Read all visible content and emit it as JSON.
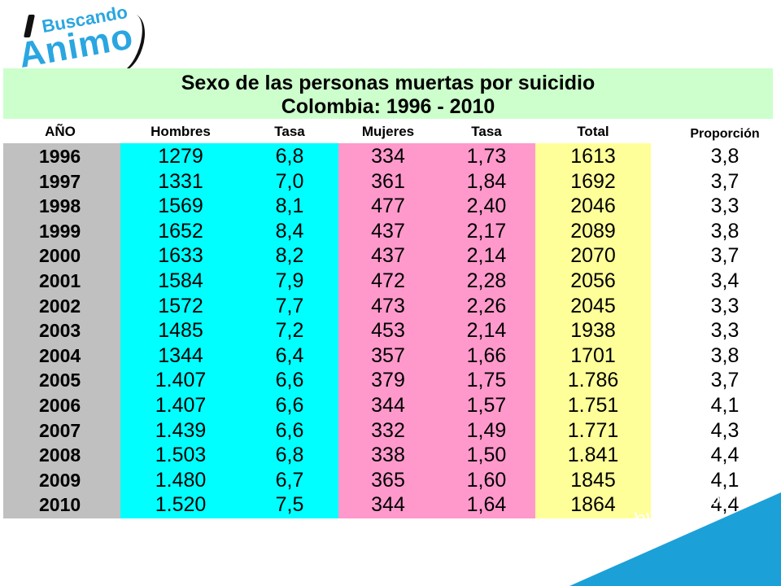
{
  "logo": {
    "top_word": "Buscando",
    "main_word": "Animo"
  },
  "title": {
    "line1": "Sexo de las personas muertas por suicidio",
    "line2": "Colombia: 1996 - 2010"
  },
  "headers": {
    "year": "AÑO",
    "men": "Hombres",
    "men_rate": "Tasa",
    "women": "Mujeres",
    "women_rate": "Tasa",
    "total": "Total",
    "ratio": "Proporción"
  },
  "colors": {
    "title_band": "#ccffcc",
    "year_col": "#c0c0c0",
    "men_cols": "#00ffff",
    "women_cols": "#ff99cc",
    "total_col": "#ffff99",
    "brand_blue": "#2aa6e0",
    "banner_blue": "#1ca0d8"
  },
  "rows": [
    {
      "year": "1996",
      "men": "1279",
      "men_rate": "6,8",
      "women": "334",
      "women_rate": "1,73",
      "total": "1613",
      "ratio": "3,8"
    },
    {
      "year": "1997",
      "men": "1331",
      "men_rate": "7,0",
      "women": "361",
      "women_rate": "1,84",
      "total": "1692",
      "ratio": "3,7"
    },
    {
      "year": "1998",
      "men": "1569",
      "men_rate": "8,1",
      "women": "477",
      "women_rate": "2,40",
      "total": "2046",
      "ratio": "3,3"
    },
    {
      "year": "1999",
      "men": "1652",
      "men_rate": "8,4",
      "women": "437",
      "women_rate": "2,17",
      "total": "2089",
      "ratio": "3,8"
    },
    {
      "year": "2000",
      "men": "1633",
      "men_rate": "8,2",
      "women": "437",
      "women_rate": "2,14",
      "total": "2070",
      "ratio": "3,7"
    },
    {
      "year": "2001",
      "men": "1584",
      "men_rate": "7,9",
      "women": "472",
      "women_rate": "2,28",
      "total": "2056",
      "ratio": "3,4"
    },
    {
      "year": "2002",
      "men": "1572",
      "men_rate": "7,7",
      "women": "473",
      "women_rate": "2,26",
      "total": "2045",
      "ratio": "3,3"
    },
    {
      "year": "2003",
      "men": "1485",
      "men_rate": "7,2",
      "women": "453",
      "women_rate": "2,14",
      "total": "1938",
      "ratio": "3,3"
    },
    {
      "year": "2004",
      "men": "1344",
      "men_rate": "6,4",
      "women": "357",
      "women_rate": "1,66",
      "total": "1701",
      "ratio": "3,8"
    },
    {
      "year": "2005",
      "men": "1.407",
      "men_rate": "6,6",
      "women": "379",
      "women_rate": "1,75",
      "total": "1.786",
      "ratio": "3,7"
    },
    {
      "year": "2006",
      "men": "1.407",
      "men_rate": "6,6",
      "women": "344",
      "women_rate": "1,57",
      "total": "1.751",
      "ratio": "4,1"
    },
    {
      "year": "2007",
      "men": "1.439",
      "men_rate": "6,6",
      "women": "332",
      "women_rate": "1,49",
      "total": "1.771",
      "ratio": "4,3"
    },
    {
      "year": "2008",
      "men": "1.503",
      "men_rate": "6,8",
      "women": "338",
      "women_rate": "1,50",
      "total": "1.841",
      "ratio": "4,4"
    },
    {
      "year": "2009",
      "men": "1.480",
      "men_rate": "6,7",
      "women": "365",
      "women_rate": "1,60",
      "total": "1845",
      "ratio": "4,1"
    },
    {
      "year": "2010",
      "men": "1.520",
      "men_rate": "7,5",
      "women": "344",
      "women_rate": "1,64",
      "total": "1864",
      "ratio": "4,4"
    }
  ],
  "banner": {
    "url": "www.buscandoanimo.org"
  }
}
